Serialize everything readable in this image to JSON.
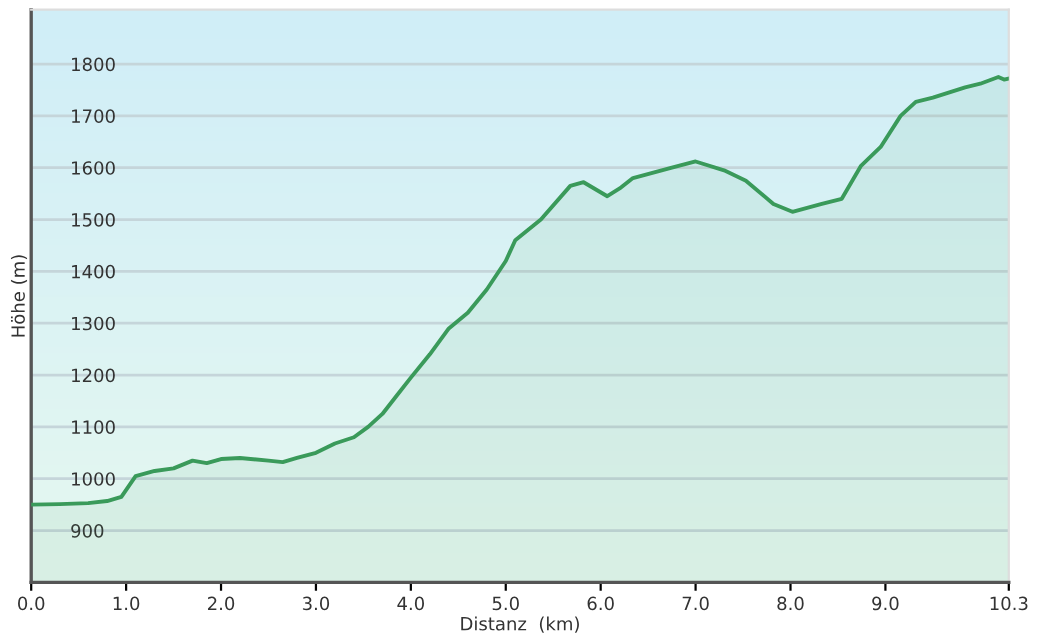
{
  "chart_data": {
    "type": "area",
    "xlabel": "Distanz  (km)",
    "ylabel": "Höhe (m)",
    "x": [
      0,
      0.3,
      0.6,
      0.8,
      0.95,
      1.1,
      1.3,
      1.5,
      1.7,
      1.85,
      2.0,
      2.2,
      2.5,
      2.65,
      2.8,
      3.0,
      3.2,
      3.4,
      3.55,
      3.7,
      3.85,
      4.0,
      4.2,
      4.4,
      4.6,
      4.8,
      5.0,
      5.1,
      5.37,
      5.68,
      5.82,
      6.07,
      6.2,
      6.34,
      6.75,
      7.0,
      7.3,
      7.53,
      7.82,
      8.02,
      8.33,
      8.54,
      8.74,
      8.95,
      9.16,
      9.32,
      9.5,
      9.84,
      10.0,
      10.19,
      10.25,
      10.3
    ],
    "series": [
      {
        "color": "#3a9a5a",
        "values": [
          950,
          951,
          953,
          957,
          965,
          1005,
          1015,
          1020,
          1035,
          1030,
          1038,
          1040,
          1035,
          1032,
          1040,
          1050,
          1068,
          1080,
          1100,
          1125,
          1160,
          1195,
          1240,
          1290,
          1320,
          1365,
          1420,
          1460,
          1500,
          1565,
          1572,
          1545,
          1560,
          1580,
          1600,
          1612,
          1595,
          1575,
          1530,
          1515,
          1530,
          1540,
          1603,
          1640,
          1700,
          1727,
          1735,
          1755,
          1762,
          1775,
          1770,
          1772
        ]
      }
    ],
    "xlim": [
      0,
      10.3
    ],
    "ylim": [
      800,
      1905
    ],
    "xticks": [
      {
        "value": 0,
        "label": "0.0"
      },
      {
        "value": 1,
        "label": "1.0"
      },
      {
        "value": 2,
        "label": "2.0"
      },
      {
        "value": 3,
        "label": "3.0"
      },
      {
        "value": 4,
        "label": "4.0"
      },
      {
        "value": 5,
        "label": "5.0"
      },
      {
        "value": 6,
        "label": "6.0"
      },
      {
        "value": 7,
        "label": "7.0"
      },
      {
        "value": 8,
        "label": "8.0"
      },
      {
        "value": 9,
        "label": "9.0"
      },
      10.3
    ],
    "yticks": [
      900,
      1000,
      1100,
      1200,
      1300,
      1400,
      1500,
      1600,
      1700,
      1800
    ],
    "grid": "y"
  }
}
